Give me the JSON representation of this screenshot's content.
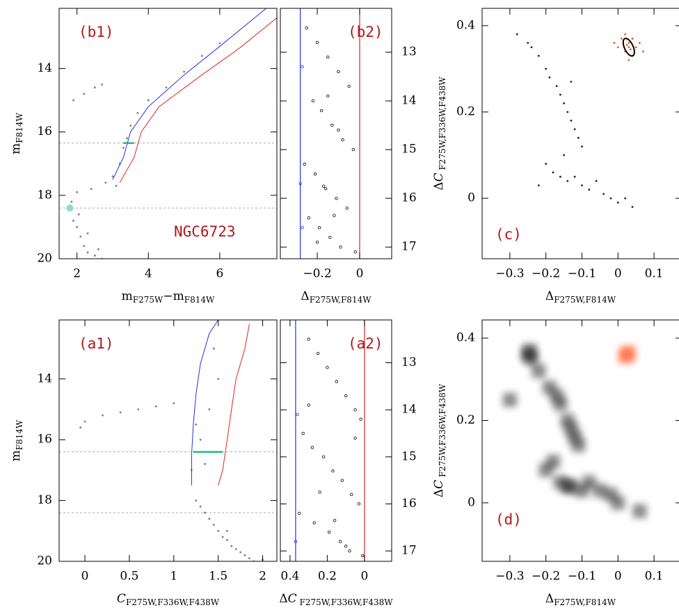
{
  "chart_data": [
    {
      "type": "scatter",
      "annotations": [
        "(b1)",
        "NGC6723"
      ],
      "xlabel": [
        {
          "text": "m"
        },
        {
          "text": "F275W",
          "sub": true
        },
        {
          "text": "−m"
        },
        {
          "text": "F814W",
          "sub": true
        }
      ],
      "ylabel": [
        {
          "text": "m"
        },
        {
          "text": "F814W",
          "sub": true
        }
      ],
      "xlim": [
        1.5,
        7.6
      ],
      "ylim": [
        20,
        12.1
      ],
      "xticks": [
        2,
        4,
        6
      ],
      "yticks": [
        14,
        16,
        18,
        20
      ],
      "yaxis_side": "left",
      "hlines": [
        {
          "value": 16.35,
          "color": "#aaaaaa"
        },
        {
          "value": 18.4,
          "color": "#aaaaaa"
        }
      ],
      "series": [
        {
          "color": "#7a7a7a",
          "x": [
            2.0,
            2.1,
            2.2,
            2.3,
            2.5,
            2.7,
            1.9,
            1.85,
            2.0,
            2.4,
            2.8,
            3.0,
            3.2,
            3.3,
            3.4,
            3.5,
            3.7,
            4.0,
            4.5,
            5.0,
            5.5,
            6.0,
            2.2,
            2.5,
            2.7,
            1.9,
            2.05,
            2.3,
            2.6,
            3.1
          ],
          "y": [
            19.0,
            19.3,
            19.6,
            19.8,
            19.9,
            20.0,
            18.8,
            18.2,
            17.9,
            17.8,
            17.6,
            17.4,
            17.0,
            16.5,
            16.2,
            15.8,
            15.4,
            15.0,
            14.6,
            14.1,
            13.6,
            13.2,
            14.8,
            14.6,
            14.5,
            15.0,
            18.6,
            19.2,
            19.7,
            17.7
          ]
        },
        {
          "color": "#2233dd",
          "mode": "line",
          "x": [
            3.0,
            3.3,
            3.5,
            4.0,
            5.0,
            6.0,
            7.3
          ],
          "y": [
            17.5,
            16.8,
            16.0,
            15.2,
            14.2,
            13.3,
            12.1
          ]
        },
        {
          "color": "#dd2222",
          "mode": "line",
          "x": [
            3.2,
            3.6,
            3.8,
            4.3,
            5.5,
            6.5,
            7.6
          ],
          "y": [
            17.6,
            16.8,
            16.0,
            15.2,
            14.2,
            13.4,
            12.4
          ]
        },
        {
          "color": "#22bb77",
          "mode": "line",
          "x": [
            3.3,
            3.6
          ],
          "y": [
            16.35,
            16.35
          ]
        },
        {
          "color": "#88ddcc",
          "size": 5,
          "x": [
            1.8
          ],
          "y": [
            18.4
          ]
        }
      ]
    },
    {
      "type": "scatter",
      "annotations": [
        "(b2)"
      ],
      "xlabel": [
        {
          "text": "Δ"
        },
        {
          "text": "F275W,F814W",
          "sub": true
        }
      ],
      "xlim": [
        -0.374,
        0.151
      ],
      "ylim": [
        17.24,
        12.1
      ],
      "xticks": [
        {
          "value": -0.2,
          "label": "−0.2"
        },
        0
      ],
      "yticks": [
        13,
        14,
        15,
        16,
        17
      ],
      "yaxis_side": "right",
      "vlines": [
        {
          "value": -0.28,
          "color": "#2233dd"
        },
        {
          "value": 0,
          "color": "#dd2222"
        }
      ],
      "series": [
        {
          "color": "#000000",
          "hollow": true,
          "x": [
            -0.25,
            -0.2,
            -0.15,
            -0.1,
            -0.05,
            -0.22,
            -0.18,
            -0.13,
            -0.08,
            -0.03,
            -0.26,
            -0.21,
            -0.16,
            -0.11,
            -0.06,
            -0.24,
            -0.19,
            -0.14,
            -0.09,
            -0.02,
            -0.17,
            -0.12,
            -0.2,
            -0.15,
            -0.1
          ],
          "y": [
            12.5,
            12.8,
            13.1,
            13.4,
            13.7,
            14.0,
            14.2,
            14.5,
            14.8,
            15.0,
            15.3,
            15.5,
            15.8,
            16.0,
            16.2,
            16.4,
            16.6,
            16.8,
            17.0,
            17.1,
            15.75,
            16.35,
            16.9,
            13.9,
            14.6
          ]
        },
        {
          "color": "#2233dd",
          "hollow": true,
          "x": [
            -0.27,
            -0.28,
            -0.27
          ],
          "y": [
            13.3,
            15.7,
            16.6
          ]
        }
      ]
    },
    {
      "type": "scatter",
      "annotations": [
        "(c)"
      ],
      "xlabel": [
        {
          "text": "Δ"
        },
        {
          "text": "F275W,F814W",
          "sub": true
        }
      ],
      "ylabel": [
        {
          "text": "Δ"
        },
        {
          "text": "C",
          "italic": true
        },
        {
          "text": " F275W,F336W,F438W",
          "sub": true
        }
      ],
      "xlim": [
        -0.377,
        0.177
      ],
      "ylim": [
        -0.14,
        0.44
      ],
      "xticks": [
        {
          "value": -0.3,
          "label": "−0.3"
        },
        {
          "value": -0.2,
          "label": "−0.2"
        },
        {
          "value": -0.1,
          "label": "−0.1"
        },
        0,
        0.1
      ],
      "yticks": [
        0,
        0.2,
        0.4
      ],
      "yaxis_side": "left",
      "ellipse": {
        "x": 0.03,
        "y": 0.35,
        "rx": 0.012,
        "ry": 0.022
      },
      "series": [
        {
          "color": "#222222",
          "x": [
            -0.28,
            -0.25,
            -0.24,
            -0.22,
            -0.2,
            -0.19,
            -0.17,
            -0.16,
            -0.15,
            -0.14,
            -0.13,
            -0.12,
            -0.11,
            -0.1,
            -0.2,
            -0.18,
            -0.16,
            -0.14,
            -0.12,
            -0.1,
            -0.08,
            -0.06,
            -0.04,
            -0.02,
            0.0,
            0.02,
            0.04,
            -0.22,
            -0.15,
            -0.13
          ],
          "y": [
            0.38,
            0.36,
            0.35,
            0.33,
            0.3,
            0.28,
            0.26,
            0.24,
            0.22,
            0.2,
            0.18,
            0.16,
            0.14,
            0.12,
            0.08,
            0.06,
            0.05,
            0.04,
            0.05,
            0.03,
            0.02,
            0.04,
            0.01,
            0.0,
            -0.01,
            0.0,
            -0.02,
            0.03,
            0.1,
            0.27
          ]
        },
        {
          "color": "#ee5522",
          "x": [
            0.0,
            0.01,
            0.02,
            0.03,
            0.04,
            0.05,
            0.06,
            0.02,
            0.03,
            0.04,
            -0.01,
            0.07,
            0.03,
            0.025,
            0.035
          ],
          "y": [
            0.35,
            0.37,
            0.34,
            0.36,
            0.33,
            0.35,
            0.36,
            0.38,
            0.32,
            0.37,
            0.36,
            0.34,
            0.35,
            0.355,
            0.345
          ]
        }
      ]
    },
    {
      "type": "scatter",
      "annotations": [
        "(a1)"
      ],
      "xlabel": [
        {
          "text": "C",
          "italic": true
        },
        {
          "text": "F275W,F336W,F438W",
          "sub": true
        }
      ],
      "ylabel": [
        {
          "text": "m"
        },
        {
          "text": "F814W",
          "sub": true
        }
      ],
      "xlim": [
        -0.29,
        2.16
      ],
      "ylim": [
        20,
        12.06
      ],
      "xticks": [
        0,
        0.5,
        1,
        1.5,
        2
      ],
      "yticks": [
        14,
        16,
        18,
        20
      ],
      "yaxis_side": "left",
      "hlines": [
        {
          "value": 16.4,
          "color": "#aaaaaa"
        },
        {
          "value": 18.4,
          "color": "#aaaaaa"
        }
      ],
      "series": [
        {
          "color": "#7a7a7a",
          "x": [
            1.3,
            1.4,
            1.5,
            1.6,
            1.7,
            1.8,
            1.9,
            1.25,
            1.35,
            1.55,
            1.2,
            1.3,
            1.4,
            1.5,
            1.45,
            1.35,
            1.25,
            0.0,
            0.2,
            0.4,
            0.6,
            0.8,
            1.0,
            -0.05,
            1.65,
            1.75,
            1.45,
            1.6,
            1.85,
            2.0
          ],
          "y": [
            18.2,
            18.6,
            19.0,
            19.3,
            19.6,
            19.8,
            20.0,
            18.0,
            18.4,
            19.2,
            17.0,
            16.0,
            15.0,
            14.0,
            13.0,
            16.8,
            15.5,
            15.4,
            15.2,
            15.1,
            15.0,
            14.9,
            14.8,
            15.6,
            19.5,
            19.7,
            18.8,
            19.0,
            19.9,
            19.95
          ]
        },
        {
          "color": "#2233dd",
          "mode": "line",
          "x": [
            1.2,
            1.2,
            1.22,
            1.25,
            1.3,
            1.4,
            1.5
          ],
          "y": [
            17.5,
            16.5,
            15.5,
            14.5,
            13.5,
            12.5,
            12.06
          ]
        },
        {
          "color": "#dd2222",
          "mode": "line",
          "x": [
            1.5,
            1.55,
            1.6,
            1.65,
            1.7,
            1.8,
            1.85
          ],
          "y": [
            17.5,
            17.0,
            16.0,
            15.0,
            14.0,
            13.0,
            12.2
          ]
        },
        {
          "color": "#22bb77",
          "mode": "line",
          "x": [
            1.22,
            1.55
          ],
          "y": [
            16.4,
            16.4
          ]
        }
      ]
    },
    {
      "type": "scatter",
      "annotations": [
        "(a2)"
      ],
      "xlabel": [
        {
          "text": "Δ"
        },
        {
          "text": "C",
          "italic": true
        },
        {
          "text": " F275W,F336W,F438W",
          "sub": true
        }
      ],
      "xlim": [
        0.452,
        -0.146
      ],
      "ylim": [
        17.22,
        12.09
      ],
      "xticks": [
        0.4,
        0.2,
        0
      ],
      "yticks": [
        13,
        14,
        15,
        16,
        17
      ],
      "yaxis_side": "right",
      "vlines": [
        {
          "value": 0.37,
          "color": "#2233dd"
        },
        {
          "value": 0,
          "color": "#dd2222"
        }
      ],
      "series": [
        {
          "color": "#000000",
          "hollow": true,
          "x": [
            0.3,
            0.25,
            0.2,
            0.15,
            0.1,
            0.05,
            0.02,
            0.33,
            0.28,
            0.22,
            0.17,
            0.12,
            0.07,
            0.03,
            0.35,
            0.27,
            0.19,
            0.13,
            0.08,
            0.01,
            0.24,
            0.16,
            0.1,
            0.3,
            0.05
          ],
          "y": [
            12.5,
            12.8,
            13.1,
            13.4,
            13.7,
            14.0,
            14.2,
            14.5,
            14.8,
            15.0,
            15.3,
            15.5,
            15.8,
            16.0,
            16.2,
            16.4,
            16.6,
            16.8,
            17.0,
            17.1,
            15.75,
            16.35,
            16.9,
            13.9,
            14.6
          ]
        },
        {
          "color": "#2233dd",
          "hollow": true,
          "x": [
            0.36,
            0.37
          ],
          "y": [
            14.1,
            16.8
          ]
        }
      ]
    },
    {
      "type": "density",
      "annotations": [
        "(d)"
      ],
      "xlabel": [
        {
          "text": "Δ"
        },
        {
          "text": "F275W,F814W",
          "sub": true
        }
      ],
      "ylabel": [
        {
          "text": "Δ"
        },
        {
          "text": "C",
          "italic": true
        },
        {
          "text": " F275W,F336W,F438W",
          "sub": true
        }
      ],
      "xlim": [
        -0.377,
        0.177
      ],
      "ylim": [
        -0.142,
        0.444
      ],
      "xticks": [
        {
          "value": -0.3,
          "label": "−0.3"
        },
        {
          "value": -0.2,
          "label": "−0.2"
        },
        {
          "value": -0.1,
          "label": "−0.1"
        },
        0,
        0.1
      ],
      "yticks": [
        0,
        0.2,
        0.4
      ],
      "yaxis_side": "left",
      "series": [
        {
          "color": "#000000",
          "x": [
            -0.25,
            -0.24,
            -0.245,
            -0.22,
            -0.19,
            -0.17,
            -0.16,
            -0.14,
            -0.13,
            -0.12,
            -0.2,
            -0.16,
            -0.14,
            -0.13,
            -0.1,
            -0.08,
            -0.05,
            -0.02,
            0.0,
            -0.18,
            -0.11,
            -0.3,
            0.06
          ],
          "y": [
            0.36,
            0.35,
            0.37,
            0.32,
            0.28,
            0.26,
            0.24,
            0.2,
            0.18,
            0.16,
            0.08,
            0.05,
            0.04,
            0.04,
            0.03,
            0.05,
            0.03,
            0.02,
            0.0,
            0.1,
            0.14,
            0.25,
            -0.02
          ]
        },
        {
          "color": "#ff5522",
          "x": [
            0.025,
            0.02,
            0.03
          ],
          "y": [
            0.36,
            0.355,
            0.365
          ]
        }
      ]
    }
  ]
}
